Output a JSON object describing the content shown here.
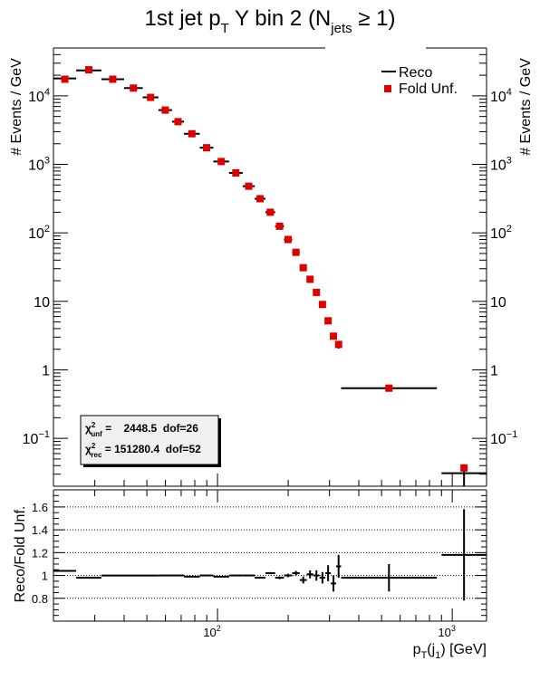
{
  "chart_data": {
    "type": "scatter",
    "title": {
      "main": "1st jet p",
      "sub_T": "T",
      "mid": " Y bin 2 (N",
      "sub_jets": "jets",
      "tail": " ≥ 1)"
    },
    "ylabel": "# Events / GeV",
    "xlabel": {
      "main": "p",
      "sub_T": "T",
      "paren": "(j",
      "sub_1": "1",
      "tail": ") [GeV]"
    },
    "ratio_ylabel": "Reco/Fold Unf.",
    "xscale": "log",
    "yscale": "log",
    "xlim": [
      20,
      1400
    ],
    "ylim": [
      0.02,
      50000
    ],
    "ratio_ylim": [
      0.6,
      1.75
    ],
    "ratio_yticks": [
      "0.8",
      "1",
      "1.2",
      "1.4",
      "1.6"
    ],
    "ratio_gridlines": [
      0.8,
      1.0,
      1.2,
      1.4,
      1.6
    ],
    "xticks": [
      {
        "base": "10",
        "exp": "2",
        "value": 100
      },
      {
        "base": "10",
        "exp": "3",
        "value": 1000
      }
    ],
    "yticks": [
      {
        "base": "10",
        "exp": "4",
        "value": 10000
      },
      {
        "base": "10",
        "exp": "3",
        "value": 1000
      },
      {
        "base": "10",
        "exp": "2",
        "value": 100
      },
      {
        "label": "10",
        "value": 10
      },
      {
        "label": "1",
        "value": 1
      },
      {
        "base": "10",
        "exp": "−1",
        "value": 0.1
      }
    ],
    "legend": {
      "position": "top-right",
      "entries": [
        {
          "label": "Reco",
          "style": "line"
        },
        {
          "label": "Fold Unf.",
          "style": "square"
        }
      ]
    },
    "stats": {
      "position": "bottom-left",
      "unf": {
        "chi": "χ",
        "sup": "2",
        "sub": "unf",
        "text": " =    2448.5  dof=26"
      },
      "rec": {
        "chi": "χ",
        "sup": "2",
        "sub": "rec",
        "text": " = 151280.4  dof=52"
      }
    },
    "colors": {
      "reco": "#000000",
      "fold": "#dd0000",
      "grid": "#000000"
    },
    "series": [
      {
        "name": "Reco",
        "kind": "hist_errorbar"
      },
      {
        "name": "Fold Unf.",
        "kind": "marker"
      }
    ],
    "bins": [
      {
        "lo": 20,
        "hi": 25,
        "reco": 18000,
        "fold": 17500,
        "err": 0
      },
      {
        "lo": 25,
        "hi": 32,
        "reco": 23500,
        "fold": 24000,
        "err": 0
      },
      {
        "lo": 32,
        "hi": 40,
        "reco": 17500,
        "fold": 17500,
        "err": 0
      },
      {
        "lo": 40,
        "hi": 48,
        "reco": 13000,
        "fold": 13000,
        "err": 0
      },
      {
        "lo": 48,
        "hi": 56,
        "reco": 9500,
        "fold": 9500,
        "err": 0
      },
      {
        "lo": 56,
        "hi": 64,
        "reco": 6200,
        "fold": 6200,
        "err": 0
      },
      {
        "lo": 64,
        "hi": 72,
        "reco": 4200,
        "fold": 4200,
        "err": 0
      },
      {
        "lo": 72,
        "hi": 84,
        "reco": 2800,
        "fold": 2800,
        "err": 0
      },
      {
        "lo": 84,
        "hi": 96,
        "reco": 1750,
        "fold": 1750,
        "err": 0
      },
      {
        "lo": 96,
        "hi": 112,
        "reco": 1100,
        "fold": 1100,
        "err": 0
      },
      {
        "lo": 112,
        "hi": 128,
        "reco": 750,
        "fold": 750,
        "err": 0
      },
      {
        "lo": 128,
        "hi": 144,
        "reco": 480,
        "fold": 480,
        "err": 0
      },
      {
        "lo": 144,
        "hi": 160,
        "reco": 315,
        "fold": 315,
        "err": 0
      },
      {
        "lo": 160,
        "hi": 176,
        "reco": 200,
        "fold": 200,
        "err": 0
      },
      {
        "lo": 176,
        "hi": 192,
        "reco": 125,
        "fold": 125,
        "err": 0
      },
      {
        "lo": 192,
        "hi": 208,
        "reco": 80,
        "fold": 80,
        "err": 0
      },
      {
        "lo": 208,
        "hi": 224,
        "reco": 52,
        "fold": 52,
        "err": 0
      },
      {
        "lo": 224,
        "hi": 240,
        "reco": 31,
        "fold": 31,
        "err": 0
      },
      {
        "lo": 240,
        "hi": 256,
        "reco": 21,
        "fold": 21,
        "err": 0
      },
      {
        "lo": 256,
        "hi": 272,
        "reco": 13.5,
        "fold": 13.5,
        "err": 0
      },
      {
        "lo": 272,
        "hi": 288,
        "reco": 9,
        "fold": 9,
        "err": 0
      },
      {
        "lo": 288,
        "hi": 304,
        "reco": 5.2,
        "fold": 5.2,
        "err": 0.04
      },
      {
        "lo": 304,
        "hi": 320,
        "reco": 3.1,
        "fold": 3.1,
        "err": 0.05
      },
      {
        "lo": 320,
        "hi": 336,
        "reco": 2.2,
        "fold": 2.35,
        "err": 0.07
      },
      {
        "lo": 336,
        "hi": 860,
        "reco": 0.54,
        "fold": 0.54,
        "err": 0.06
      },
      {
        "lo": 900,
        "hi": 1400,
        "reco": 0.031,
        "fold": 0.037,
        "err": 0.35
      }
    ],
    "ratio": [
      {
        "lo": 20,
        "hi": 25,
        "r": 1.04,
        "e": 0
      },
      {
        "lo": 25,
        "hi": 32,
        "r": 0.98,
        "e": 0
      },
      {
        "lo": 32,
        "hi": 40,
        "r": 1.0,
        "e": 0
      },
      {
        "lo": 40,
        "hi": 48,
        "r": 1.0,
        "e": 0
      },
      {
        "lo": 48,
        "hi": 56,
        "r": 1.0,
        "e": 0
      },
      {
        "lo": 56,
        "hi": 64,
        "r": 1.0,
        "e": 0
      },
      {
        "lo": 64,
        "hi": 72,
        "r": 1.0,
        "e": 0
      },
      {
        "lo": 72,
        "hi": 84,
        "r": 0.99,
        "e": 0
      },
      {
        "lo": 84,
        "hi": 96,
        "r": 1.0,
        "e": 0.005
      },
      {
        "lo": 96,
        "hi": 112,
        "r": 0.99,
        "e": 0.005
      },
      {
        "lo": 112,
        "hi": 128,
        "r": 1.0,
        "e": 0.005
      },
      {
        "lo": 128,
        "hi": 144,
        "r": 1.0,
        "e": 0.006
      },
      {
        "lo": 144,
        "hi": 160,
        "r": 0.98,
        "e": 0.007
      },
      {
        "lo": 160,
        "hi": 176,
        "r": 1.02,
        "e": 0.01
      },
      {
        "lo": 176,
        "hi": 192,
        "r": 0.98,
        "e": 0.012
      },
      {
        "lo": 192,
        "hi": 208,
        "r": 1.0,
        "e": 0.015
      },
      {
        "lo": 208,
        "hi": 224,
        "r": 1.02,
        "e": 0.02
      },
      {
        "lo": 224,
        "hi": 240,
        "r": 0.96,
        "e": 0.03
      },
      {
        "lo": 240,
        "hi": 256,
        "r": 1.01,
        "e": 0.035
      },
      {
        "lo": 256,
        "hi": 272,
        "r": 1.0,
        "e": 0.045
      },
      {
        "lo": 272,
        "hi": 288,
        "r": 0.98,
        "e": 0.05
      },
      {
        "lo": 288,
        "hi": 304,
        "r": 1.02,
        "e": 0.07
      },
      {
        "lo": 304,
        "hi": 320,
        "r": 0.93,
        "e": 0.07
      },
      {
        "lo": 320,
        "hi": 336,
        "r": 1.08,
        "e": 0.1
      },
      {
        "lo": 336,
        "hi": 860,
        "r": 0.98,
        "e": 0.12
      },
      {
        "lo": 900,
        "hi": 1400,
        "r": 1.18,
        "e": 0.4
      }
    ]
  }
}
